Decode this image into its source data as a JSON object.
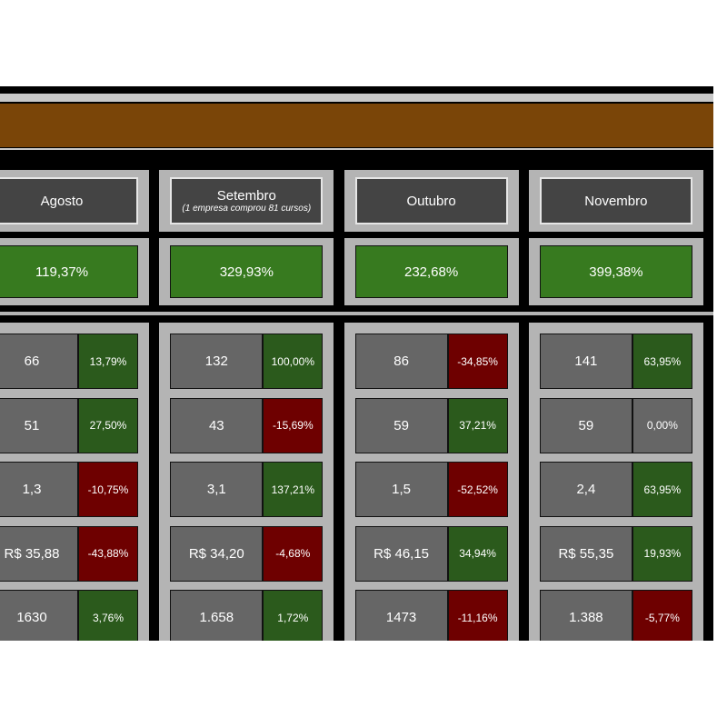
{
  "total_color": "#377a1f",
  "columns": [
    {
      "header": "Agosto",
      "total": "119,37%",
      "rows": [
        {
          "value": "66",
          "change": "13,79%",
          "color": "#2b5a1c"
        },
        {
          "value": "51",
          "change": "27,50%",
          "color": "#2b5a1c"
        },
        {
          "value": "1,3",
          "change": "-10,75%",
          "color": "#6e0000"
        },
        {
          "value": "R$ 35,88",
          "change": "-43,88%",
          "color": "#6e0000"
        },
        {
          "value": "1630",
          "change": "3,76%",
          "color": "#2b5a1c"
        }
      ]
    },
    {
      "header": "Setembro",
      "note": "(1 empresa comprou 81 cursos)",
      "total": "329,93%",
      "rows": [
        {
          "value": "132",
          "change": "100,00%",
          "color": "#2b5a1c"
        },
        {
          "value": "43",
          "change": "-15,69%",
          "color": "#6e0000"
        },
        {
          "value": "3,1",
          "change": "137,21%",
          "color": "#2b5a1c"
        },
        {
          "value": "R$ 34,20",
          "change": "-4,68%",
          "color": "#6e0000"
        },
        {
          "value": "1.658",
          "change": "1,72%",
          "color": "#2b5a1c"
        }
      ]
    },
    {
      "header": "Outubro",
      "total": "232,68%",
      "rows": [
        {
          "value": "86",
          "change": "-34,85%",
          "color": "#6e0000"
        },
        {
          "value": "59",
          "change": "37,21%",
          "color": "#2b5a1c"
        },
        {
          "value": "1,5",
          "change": "-52,52%",
          "color": "#6e0000"
        },
        {
          "value": "R$ 46,15",
          "change": "34,94%",
          "color": "#2b5a1c"
        },
        {
          "value": "1473",
          "change": "-11,16%",
          "color": "#6e0000"
        }
      ]
    },
    {
      "header": "Novembro",
      "total": "399,38%",
      "rows": [
        {
          "value": "141",
          "change": "63,95%",
          "color": "#2b5a1c"
        },
        {
          "value": "59",
          "change": "0,00%",
          "color": "#666666"
        },
        {
          "value": "2,4",
          "change": "63,95%",
          "color": "#2b5a1c"
        },
        {
          "value": "R$ 55,35",
          "change": "19,93%",
          "color": "#2b5a1c"
        },
        {
          "value": "1.388",
          "change": "-5,77%",
          "color": "#6e0000"
        }
      ]
    }
  ]
}
